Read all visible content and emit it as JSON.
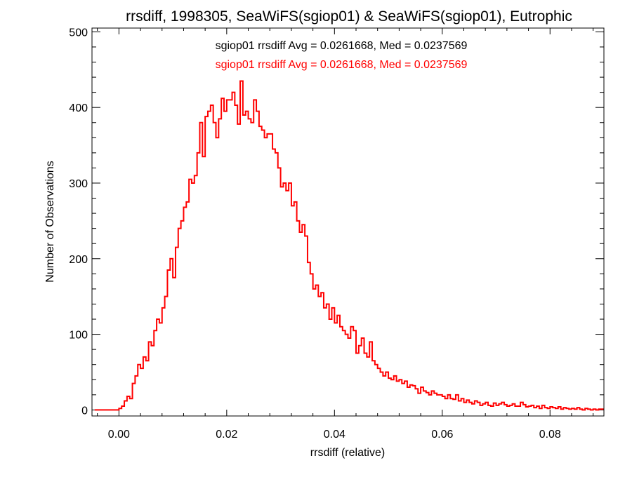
{
  "chart_data": {
    "type": "histogram",
    "title": "rrsdiff, 1998305, SeaWiFS(sgiop01) & SeaWiFS(sgiop01), Eutrophic",
    "xlabel": "rrsdiff (relative)",
    "ylabel": "Number of Observations",
    "xlim": [
      -0.005,
      0.09
    ],
    "ylim": [
      -8,
      505
    ],
    "x_ticks": [
      0.0,
      0.02,
      0.04,
      0.06,
      0.08
    ],
    "x_tick_labels": [
      "0.00",
      "0.02",
      "0.04",
      "0.06",
      "0.08"
    ],
    "y_ticks": [
      0,
      100,
      200,
      300,
      400,
      500
    ],
    "y_tick_labels": [
      "0",
      "100",
      "200",
      "300",
      "400",
      "500"
    ],
    "grid": false,
    "annotations": [
      {
        "text": "sgiop01 rrsdiff Avg = 0.0261668, Med = 0.0237569",
        "color": "#000000"
      },
      {
        "text": "sgiop01 rrsdiff Avg = 0.0261668, Med = 0.0237569",
        "color": "#ff0000"
      }
    ],
    "series": [
      {
        "color": "#ff0000",
        "style": "step",
        "points": [
          [
            -0.0045,
            0
          ],
          [
            -0.0005,
            0
          ],
          [
            0.0,
            2
          ],
          [
            0.0005,
            5
          ],
          [
            0.001,
            12
          ],
          [
            0.0015,
            18
          ],
          [
            0.002,
            15
          ],
          [
            0.0025,
            35
          ],
          [
            0.003,
            45
          ],
          [
            0.0035,
            60
          ],
          [
            0.004,
            55
          ],
          [
            0.0045,
            70
          ],
          [
            0.005,
            65
          ],
          [
            0.0055,
            90
          ],
          [
            0.006,
            85
          ],
          [
            0.0065,
            105
          ],
          [
            0.007,
            120
          ],
          [
            0.0075,
            115
          ],
          [
            0.008,
            135
          ],
          [
            0.0085,
            150
          ],
          [
            0.009,
            185
          ],
          [
            0.0095,
            200
          ],
          [
            0.01,
            175
          ],
          [
            0.0105,
            215
          ],
          [
            0.011,
            240
          ],
          [
            0.0115,
            250
          ],
          [
            0.012,
            268
          ],
          [
            0.0125,
            275
          ],
          [
            0.013,
            305
          ],
          [
            0.0135,
            300
          ],
          [
            0.014,
            310
          ],
          [
            0.0145,
            340
          ],
          [
            0.015,
            380
          ],
          [
            0.0155,
            335
          ],
          [
            0.016,
            388
          ],
          [
            0.0165,
            395
          ],
          [
            0.017,
            403
          ],
          [
            0.0175,
            380
          ],
          [
            0.018,
            360
          ],
          [
            0.0185,
            385
          ],
          [
            0.019,
            412
          ],
          [
            0.0195,
            395
          ],
          [
            0.02,
            410
          ],
          [
            0.0205,
            410
          ],
          [
            0.021,
            420
          ],
          [
            0.0215,
            403
          ],
          [
            0.022,
            378
          ],
          [
            0.0225,
            435
          ],
          [
            0.023,
            390
          ],
          [
            0.0235,
            395
          ],
          [
            0.024,
            385
          ],
          [
            0.0245,
            380
          ],
          [
            0.025,
            410
          ],
          [
            0.0255,
            395
          ],
          [
            0.026,
            375
          ],
          [
            0.0265,
            370
          ],
          [
            0.027,
            360
          ],
          [
            0.0275,
            365
          ],
          [
            0.028,
            365
          ],
          [
            0.0285,
            345
          ],
          [
            0.029,
            340
          ],
          [
            0.0295,
            320
          ],
          [
            0.03,
            295
          ],
          [
            0.0305,
            300
          ],
          [
            0.031,
            290
          ],
          [
            0.0315,
            300
          ],
          [
            0.032,
            270
          ],
          [
            0.0325,
            275
          ],
          [
            0.033,
            250
          ],
          [
            0.0335,
            235
          ],
          [
            0.034,
            245
          ],
          [
            0.0345,
            230
          ],
          [
            0.035,
            195
          ],
          [
            0.0355,
            180
          ],
          [
            0.036,
            160
          ],
          [
            0.0365,
            165
          ],
          [
            0.037,
            150
          ],
          [
            0.0375,
            155
          ],
          [
            0.038,
            135
          ],
          [
            0.0385,
            140
          ],
          [
            0.039,
            120
          ],
          [
            0.0395,
            135
          ],
          [
            0.04,
            115
          ],
          [
            0.0405,
            125
          ],
          [
            0.041,
            110
          ],
          [
            0.0415,
            105
          ],
          [
            0.042,
            100
          ],
          [
            0.0425,
            95
          ],
          [
            0.043,
            110
          ],
          [
            0.0435,
            105
          ],
          [
            0.044,
            75
          ],
          [
            0.0445,
            85
          ],
          [
            0.045,
            95
          ],
          [
            0.0455,
            75
          ],
          [
            0.046,
            70
          ],
          [
            0.0465,
            90
          ],
          [
            0.047,
            65
          ],
          [
            0.0475,
            60
          ],
          [
            0.048,
            55
          ],
          [
            0.0485,
            50
          ],
          [
            0.049,
            45
          ],
          [
            0.0495,
            50
          ],
          [
            0.05,
            42
          ],
          [
            0.0505,
            40
          ],
          [
            0.051,
            45
          ],
          [
            0.0515,
            38
          ],
          [
            0.052,
            40
          ],
          [
            0.0525,
            35
          ],
          [
            0.053,
            38
          ],
          [
            0.0535,
            30
          ],
          [
            0.054,
            33
          ],
          [
            0.0545,
            32
          ],
          [
            0.055,
            28
          ],
          [
            0.0555,
            22
          ],
          [
            0.056,
            30
          ],
          [
            0.0565,
            25
          ],
          [
            0.057,
            23
          ],
          [
            0.0575,
            20
          ],
          [
            0.058,
            25
          ],
          [
            0.0585,
            22
          ],
          [
            0.059,
            20
          ],
          [
            0.0595,
            20
          ],
          [
            0.06,
            18
          ],
          [
            0.0605,
            15
          ],
          [
            0.061,
            20
          ],
          [
            0.0615,
            15
          ],
          [
            0.062,
            14
          ],
          [
            0.0625,
            20
          ],
          [
            0.063,
            12
          ],
          [
            0.0635,
            15
          ],
          [
            0.064,
            10
          ],
          [
            0.0645,
            13
          ],
          [
            0.065,
            10
          ],
          [
            0.0655,
            8
          ],
          [
            0.066,
            12
          ],
          [
            0.0665,
            10
          ],
          [
            0.067,
            6
          ],
          [
            0.0675,
            8
          ],
          [
            0.068,
            10
          ],
          [
            0.0685,
            6
          ],
          [
            0.069,
            5
          ],
          [
            0.0695,
            9
          ],
          [
            0.07,
            6
          ],
          [
            0.0705,
            8
          ],
          [
            0.071,
            10
          ],
          [
            0.0715,
            7
          ],
          [
            0.072,
            5
          ],
          [
            0.0725,
            6
          ],
          [
            0.073,
            8
          ],
          [
            0.0735,
            5
          ],
          [
            0.074,
            5
          ],
          [
            0.0745,
            10
          ],
          [
            0.075,
            7
          ],
          [
            0.0755,
            4
          ],
          [
            0.076,
            5
          ],
          [
            0.0765,
            6
          ],
          [
            0.077,
            3
          ],
          [
            0.0775,
            5
          ],
          [
            0.078,
            2
          ],
          [
            0.0785,
            6
          ],
          [
            0.079,
            3
          ],
          [
            0.0795,
            2
          ],
          [
            0.08,
            4
          ],
          [
            0.0805,
            3
          ],
          [
            0.081,
            2
          ],
          [
            0.0815,
            4
          ],
          [
            0.082,
            1
          ],
          [
            0.0825,
            3
          ],
          [
            0.083,
            2
          ],
          [
            0.0835,
            1
          ],
          [
            0.084,
            2
          ],
          [
            0.0845,
            1
          ],
          [
            0.085,
            3
          ],
          [
            0.0855,
            1
          ],
          [
            0.086,
            0
          ],
          [
            0.0865,
            2
          ],
          [
            0.087,
            1
          ],
          [
            0.0875,
            0
          ],
          [
            0.088,
            1
          ],
          [
            0.0885,
            0
          ],
          [
            0.089,
            1
          ]
        ]
      }
    ]
  }
}
